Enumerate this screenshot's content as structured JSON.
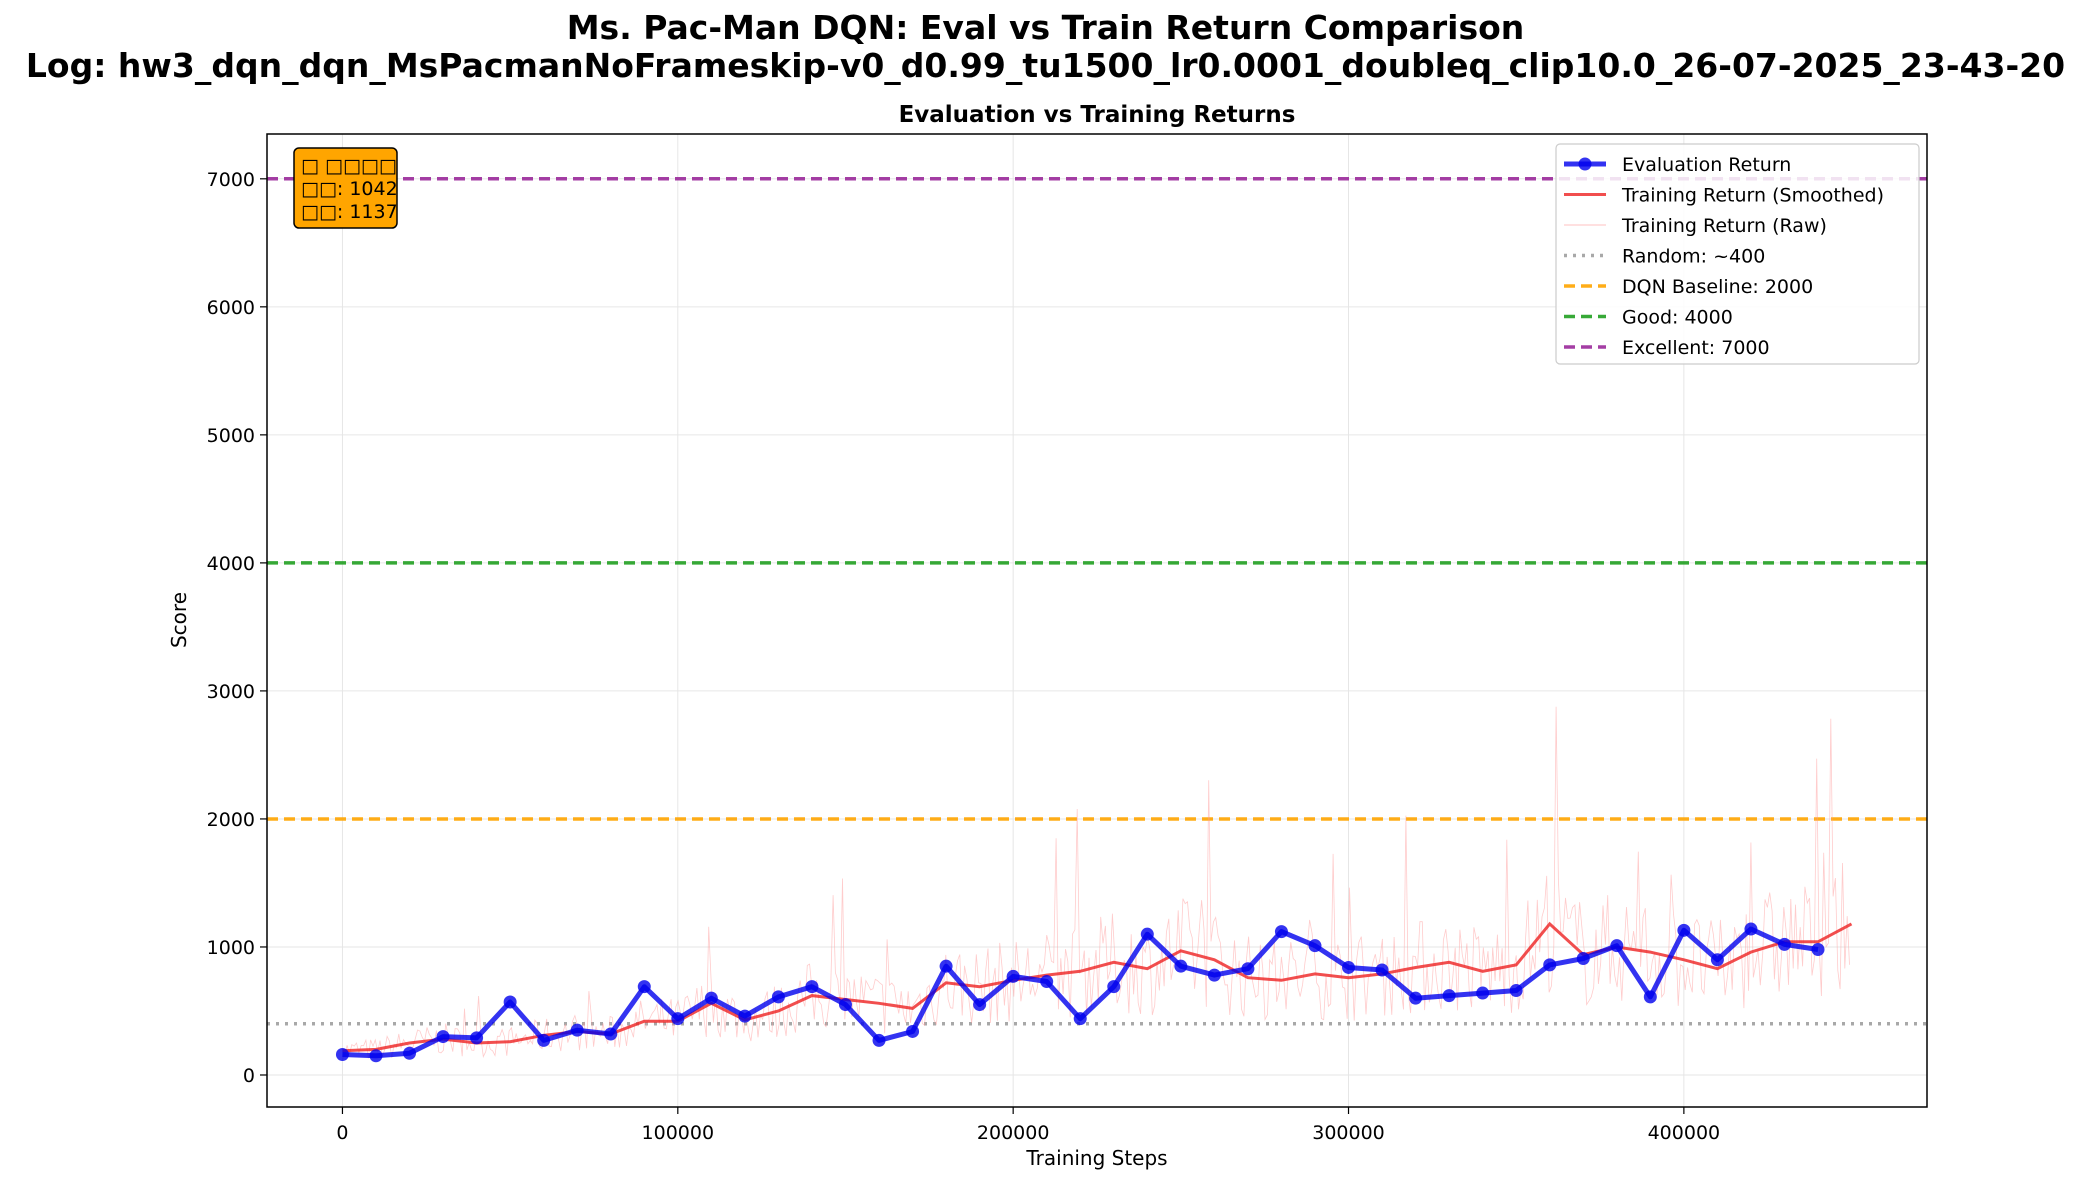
{
  "figure": {
    "title_line1": "Ms. Pac-Man DQN: Eval vs Train Return Comparison",
    "title_line2": "Log: hw3_dqn_dqn_MsPacmanNoFrameskip-v0_d0.99_tu1500_lr0.0001_doubleq_clip10.0_26-07-2025_23-43-20"
  },
  "annotation": {
    "line1": "□ □□□□",
    "line2": "□□: 1042",
    "line3": "□□: 1137",
    "background": "#FFA500"
  },
  "chart_data": {
    "type": "line",
    "title": "Evaluation vs Training Returns",
    "xlabel": "Training Steps",
    "ylabel": "Score",
    "xlim": [
      -22500,
      472500
    ],
    "ylim": [
      -250,
      7350
    ],
    "xticks": [
      0,
      100000,
      200000,
      300000,
      400000
    ],
    "yticks": [
      0,
      1000,
      2000,
      3000,
      4000,
      5000,
      6000,
      7000
    ],
    "grid": true,
    "legend_position": "top-right",
    "series": [
      {
        "name": "Evaluation Return",
        "color": "#0000ee",
        "style": "line-markers",
        "x": [
          0,
          10000,
          20000,
          30000,
          40000,
          50000,
          60000,
          70000,
          80000,
          90000,
          100000,
          110000,
          120000,
          130000,
          140000,
          150000,
          160000,
          170000,
          180000,
          190000,
          200000,
          210000,
          220000,
          230000,
          240000,
          250000,
          260000,
          270000,
          280000,
          290000,
          300000,
          310000,
          320000,
          330000,
          340000,
          350000,
          360000,
          370000,
          380000,
          390000,
          400000,
          410000,
          420000,
          430000,
          440000
        ],
        "values": [
          160,
          150,
          170,
          300,
          290,
          570,
          270,
          350,
          320,
          690,
          440,
          600,
          460,
          610,
          690,
          550,
          270,
          340,
          850,
          550,
          770,
          730,
          440,
          690,
          1100,
          850,
          780,
          830,
          1120,
          1010,
          840,
          820,
          600,
          620,
          640,
          660,
          860,
          910,
          1010,
          610,
          1130,
          900,
          1140,
          1020,
          980
        ]
      },
      {
        "name": "Training Return (Smoothed)",
        "color": "#ee2222",
        "style": "line",
        "x": [
          0,
          10000,
          20000,
          30000,
          40000,
          50000,
          60000,
          70000,
          80000,
          90000,
          100000,
          110000,
          120000,
          130000,
          140000,
          150000,
          160000,
          170000,
          180000,
          190000,
          200000,
          210000,
          220000,
          230000,
          240000,
          250000,
          260000,
          270000,
          280000,
          290000,
          300000,
          310000,
          320000,
          330000,
          340000,
          350000,
          360000,
          370000,
          380000,
          390000,
          400000,
          410000,
          420000,
          430000,
          440000,
          450000
        ],
        "values": [
          190,
          200,
          250,
          280,
          250,
          260,
          310,
          340,
          320,
          420,
          420,
          560,
          430,
          500,
          620,
          590,
          560,
          520,
          720,
          690,
          740,
          780,
          810,
          880,
          830,
          970,
          900,
          760,
          740,
          790,
          760,
          790,
          840,
          880,
          810,
          860,
          1180,
          940,
          1000,
          960,
          900,
          830,
          960,
          1040,
          1040,
          1180
        ]
      },
      {
        "name": "Training Return (Raw)",
        "color": "#ff9999",
        "style": "thin-line"
      },
      {
        "name": "Random: ~400",
        "color": "#999999",
        "style": "dotted",
        "y": 400
      },
      {
        "name": "DQN Baseline: 2000",
        "color": "#FFA500",
        "style": "dashed",
        "y": 2000
      },
      {
        "name": "Good: 4000",
        "color": "#22a022",
        "style": "dashed",
        "y": 4000
      },
      {
        "name": "Excellent: 7000",
        "color": "#9b2a9b",
        "style": "dashed",
        "y": 7000
      }
    ]
  }
}
